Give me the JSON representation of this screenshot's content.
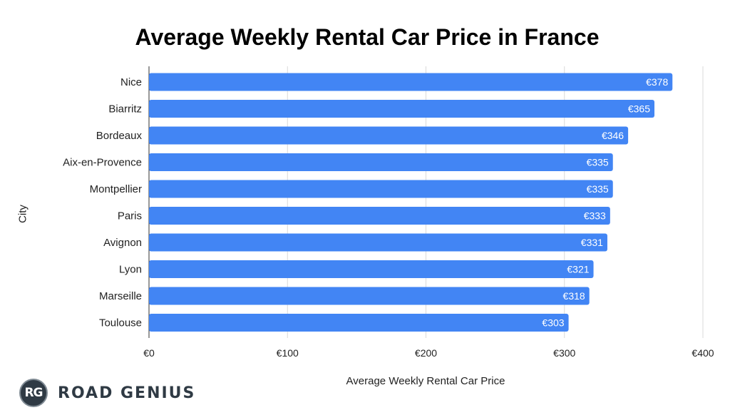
{
  "chart_data": {
    "type": "bar",
    "orientation": "horizontal",
    "title": "Average Weekly Rental Car Price in France",
    "xlabel": "Average Weekly Rental Car Price",
    "ylabel": "City",
    "categories": [
      "Nice",
      "Biarritz",
      "Bordeaux",
      "Aix-en-Provence",
      "Montpellier",
      "Paris",
      "Avignon",
      "Lyon",
      "Marseille",
      "Toulouse"
    ],
    "values": [
      378,
      365,
      346,
      335,
      335,
      333,
      331,
      321,
      318,
      303
    ],
    "value_labels": [
      "€378",
      "€365",
      "€346",
      "€335",
      "€335",
      "€333",
      "€331",
      "€321",
      "€318",
      "€303"
    ],
    "xlim": [
      0,
      400
    ],
    "xticks": [
      0,
      100,
      200,
      300,
      400
    ],
    "xtick_labels": [
      "€0",
      "€100",
      "€200",
      "€300",
      "€400"
    ],
    "grid": true,
    "bar_color": "#4285f4"
  },
  "logo": {
    "badge": "RG",
    "text": "ROAD GENIUS"
  }
}
